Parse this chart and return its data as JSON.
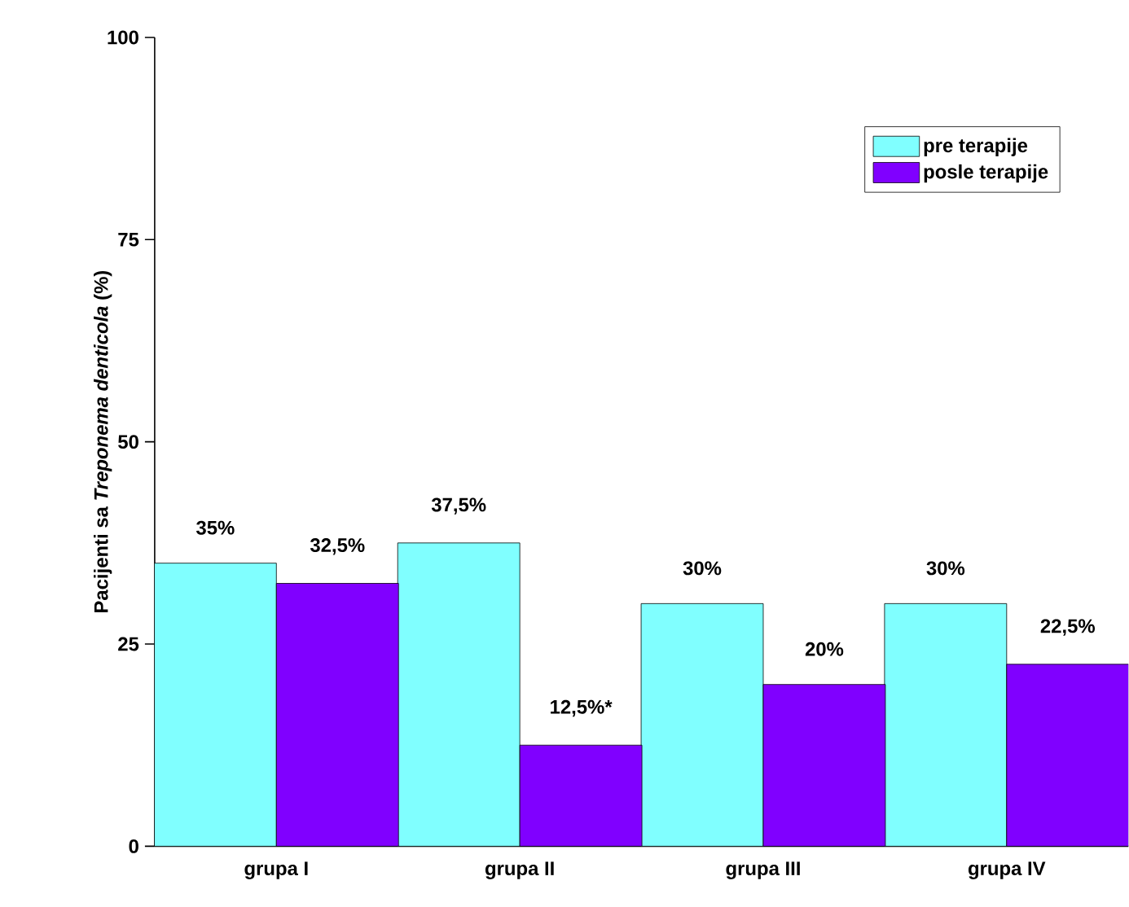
{
  "chart_data": {
    "type": "bar",
    "ylabel": "Pacijenti sa *Treponema denticola* (%)",
    "categories": [
      "grupa I",
      "grupa II",
      "grupa III",
      "grupa IV"
    ],
    "series": [
      {
        "name": "pre terapije",
        "color": "#80ffff",
        "values": [
          35,
          37.5,
          30,
          30
        ],
        "value_labels": [
          "35%",
          "37,5%",
          "30%",
          "30%"
        ]
      },
      {
        "name": "posle terapije",
        "color": "#8000ff",
        "values": [
          32.5,
          12.5,
          20,
          22.5
        ],
        "value_labels": [
          "32,5%",
          "12,5%*",
          "20%",
          "22,5%"
        ]
      }
    ],
    "ylim": [
      0,
      100
    ],
    "yticks": [
      0,
      25,
      50,
      75,
      100
    ],
    "legend": "top right",
    "grid": false
  }
}
